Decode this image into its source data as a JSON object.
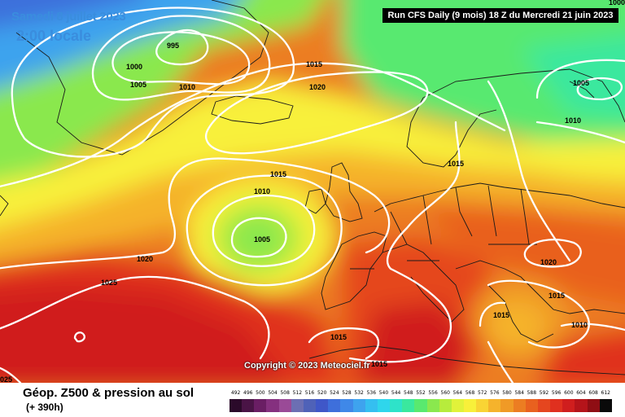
{
  "header": {
    "date": "Samedi 8 juillet 2023",
    "time": "2:00 locale",
    "run": "Run CFS Daily (9 mois) 18 Z du Mercredi 21 juin 2023"
  },
  "copyright": "Copyright © 2023 Meteociel.fr",
  "legend": {
    "title": "Géop. Z500 & pression au sol",
    "subtitle": "(+ 390h)",
    "scale": [
      {
        "value": "492",
        "color": "#2b0a2a"
      },
      {
        "value": "496",
        "color": "#4a1446"
      },
      {
        "value": "500",
        "color": "#6a1e64"
      },
      {
        "value": "504",
        "color": "#85307f"
      },
      {
        "value": "508",
        "color": "#9a4a97"
      },
      {
        "value": "512",
        "color": "#6c6fb3"
      },
      {
        "value": "516",
        "color": "#4f62b8"
      },
      {
        "value": "520",
        "color": "#3f57c8"
      },
      {
        "value": "524",
        "color": "#3e6fdb"
      },
      {
        "value": "528",
        "color": "#3f88e8"
      },
      {
        "value": "532",
        "color": "#3ea3ee"
      },
      {
        "value": "536",
        "color": "#35bff0"
      },
      {
        "value": "540",
        "color": "#2fd6ec"
      },
      {
        "value": "544",
        "color": "#2ee3c9"
      },
      {
        "value": "548",
        "color": "#3ae89e"
      },
      {
        "value": "552",
        "color": "#59e96f"
      },
      {
        "value": "556",
        "color": "#8ae84e"
      },
      {
        "value": "560",
        "color": "#b7ec3c"
      },
      {
        "value": "564",
        "color": "#e1f23a"
      },
      {
        "value": "568",
        "color": "#f8f03a"
      },
      {
        "value": "572",
        "color": "#f9d434"
      },
      {
        "value": "576",
        "color": "#f5b32c"
      },
      {
        "value": "580",
        "color": "#f09a26"
      },
      {
        "value": "584",
        "color": "#ec7d22"
      },
      {
        "value": "588",
        "color": "#e9611f"
      },
      {
        "value": "592",
        "color": "#e5461f"
      },
      {
        "value": "596",
        "color": "#e0301f"
      },
      {
        "value": "600",
        "color": "#d01e1e"
      },
      {
        "value": "604",
        "color": "#b5141a"
      },
      {
        "value": "608",
        "color": "#8f0e14"
      },
      {
        "value": "612",
        "color": "#0a0a0a"
      }
    ]
  },
  "map": {
    "isobars": [
      "995",
      "1000",
      "1005",
      "1010",
      "1015",
      "1020",
      "1025"
    ],
    "labels": [
      {
        "id": "l995",
        "text": "995"
      },
      {
        "id": "l1000",
        "text": "1000"
      },
      {
        "id": "l1005a",
        "text": "1005"
      },
      {
        "id": "l1010a",
        "text": "1010"
      },
      {
        "id": "l1015a",
        "text": "1015"
      },
      {
        "id": "l1020a",
        "text": "1020"
      },
      {
        "id": "l1015b",
        "text": "1015"
      },
      {
        "id": "l1010b",
        "text": "1010"
      },
      {
        "id": "l1005b",
        "text": "1005"
      },
      {
        "id": "l1020b",
        "text": "1020"
      },
      {
        "id": "l1025a",
        "text": "1025"
      },
      {
        "id": "l1015c",
        "text": "1015"
      },
      {
        "id": "l1005c",
        "text": "1005"
      },
      {
        "id": "l1010c",
        "text": "1010"
      },
      {
        "id": "l1015d",
        "text": "1015"
      },
      {
        "id": "l1020c",
        "text": "1020"
      },
      {
        "id": "l1015e",
        "text": "1015"
      },
      {
        "id": "l1010d",
        "text": "1010"
      },
      {
        "id": "l1015f",
        "text": "1015"
      },
      {
        "id": "l1015g",
        "text": "1015"
      },
      {
        "id": "l1025b",
        "text": "025"
      },
      {
        "id": "l1000b",
        "text": "1000"
      }
    ]
  }
}
